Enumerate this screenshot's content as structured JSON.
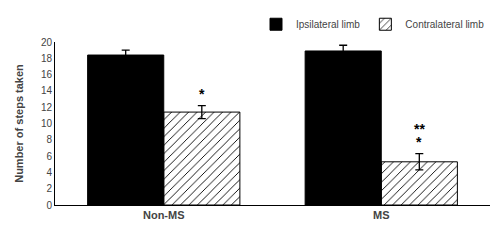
{
  "chart_data": {
    "type": "bar",
    "categories": [
      "Non-MS",
      "MS"
    ],
    "ylabel": "Number of steps taken",
    "ylim": [
      0,
      20
    ],
    "yticks": [
      0,
      2,
      4,
      6,
      8,
      10,
      12,
      14,
      16,
      18,
      20
    ],
    "grid": false,
    "legend": "upper right",
    "series": [
      {
        "name": "Ipsilateral limb",
        "color": "#000000",
        "values": [
          18.4,
          18.9
        ],
        "errors": [
          0.6,
          0.7
        ]
      },
      {
        "name": "Contralateral limb",
        "color": "#c8c8c8",
        "values": [
          11.4,
          5.3
        ],
        "errors": [
          0.8,
          1.0
        ]
      }
    ],
    "annotations": [
      {
        "text": "*",
        "category": "Non-MS",
        "series": "Contralateral limb"
      },
      {
        "text": "*",
        "category": "MS",
        "series": "Contralateral limb"
      },
      {
        "text": "**",
        "category": "MS",
        "series": "Contralateral limb"
      }
    ]
  }
}
